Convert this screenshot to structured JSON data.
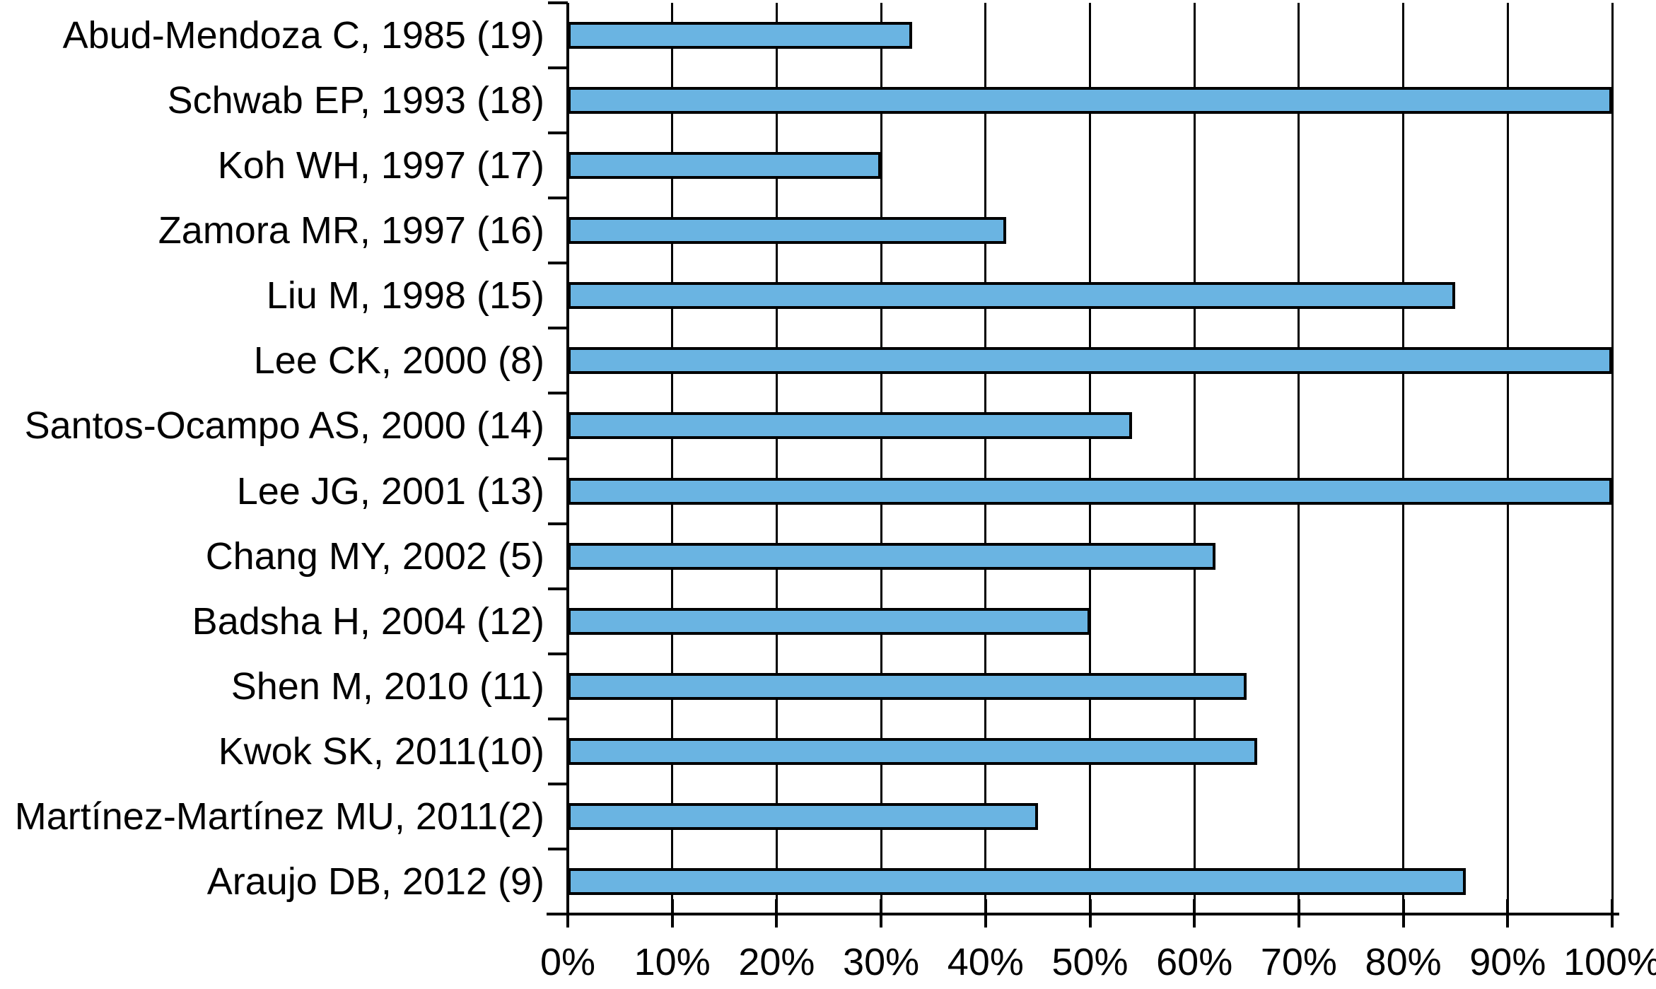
{
  "chart_data": {
    "type": "bar",
    "orientation": "horizontal",
    "title": "",
    "xlabel": "",
    "ylabel": "",
    "categories": [
      "Abud-Mendoza C, 1985 (19)",
      "Schwab EP, 1993 (18)",
      "Koh WH, 1997 (17)",
      "Zamora MR, 1997 (16)",
      "Liu M, 1998 (15)",
      "Lee CK, 2000 (8)",
      "Santos-Ocampo AS, 2000 (14)",
      "Lee JG, 2001 (13)",
      "Chang MY, 2002 (5)",
      "Badsha H, 2004 (12)",
      "Shen M, 2010 (11)",
      "Kwok SK, 2011(10)",
      "Martínez-Martínez MU, 2011(2)",
      "Araujo DB, 2012 (9)"
    ],
    "values": [
      33,
      100,
      30,
      42,
      85,
      100,
      54,
      100,
      62,
      50,
      65,
      66,
      45,
      86
    ],
    "unit": "%",
    "xlim": [
      0,
      100
    ],
    "x_tick_step": 10,
    "x_tick_labels": [
      "0%",
      "10%",
      "20%",
      "30%",
      "40%",
      "50%",
      "60%",
      "70%",
      "80%",
      "90%",
      "100%"
    ],
    "grid": "vertical gridlines every 10%",
    "legend": "none",
    "colors": {
      "bar_fill": "#6ab4e2",
      "bar_border": "#000000",
      "axis": "#000000",
      "background": "#ffffff"
    }
  }
}
